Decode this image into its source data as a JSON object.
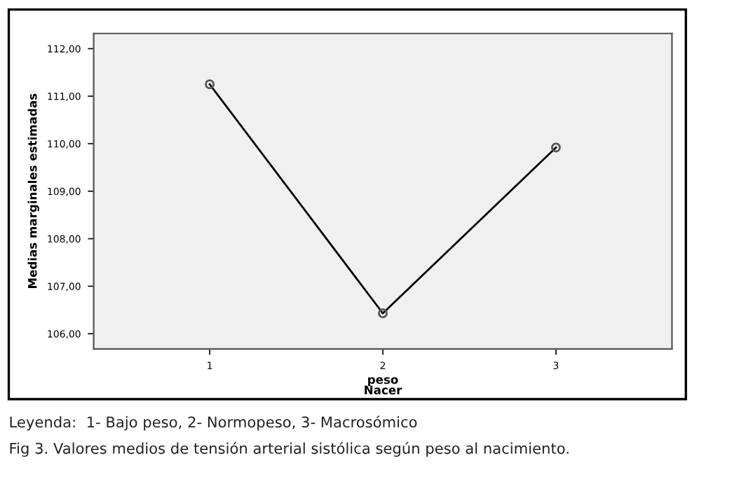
{
  "chart_data": {
    "type": "line",
    "categories": [
      "1",
      "2",
      "3"
    ],
    "series": [
      {
        "color": "#000000",
        "values": [
          111.25,
          106.43,
          109.92
        ]
      }
    ],
    "xlabel": "peso\nNacer",
    "ylabel": "Medias marginales estimadas",
    "ylim": [
      105.68,
      112.32
    ],
    "yticks": [
      {
        "value": 106,
        "label": "106,00"
      },
      {
        "value": 107,
        "label": "107,00"
      },
      {
        "value": 108,
        "label": "108,00"
      },
      {
        "value": 109,
        "label": "109,00"
      },
      {
        "value": 110,
        "label": "110,00"
      },
      {
        "value": 111,
        "label": "111,00"
      },
      {
        "value": 112,
        "label": "112,00"
      }
    ],
    "marker": "circle",
    "line_style": "solid",
    "grid": false,
    "legend": false,
    "annotations": [
      "Leyenda:  1- Bajo peso, 2- Normopeso, 3- Macrosómico",
      "Fig 3. Valores medios de tensión arterial sistólica según peso al nacimiento."
    ]
  }
}
